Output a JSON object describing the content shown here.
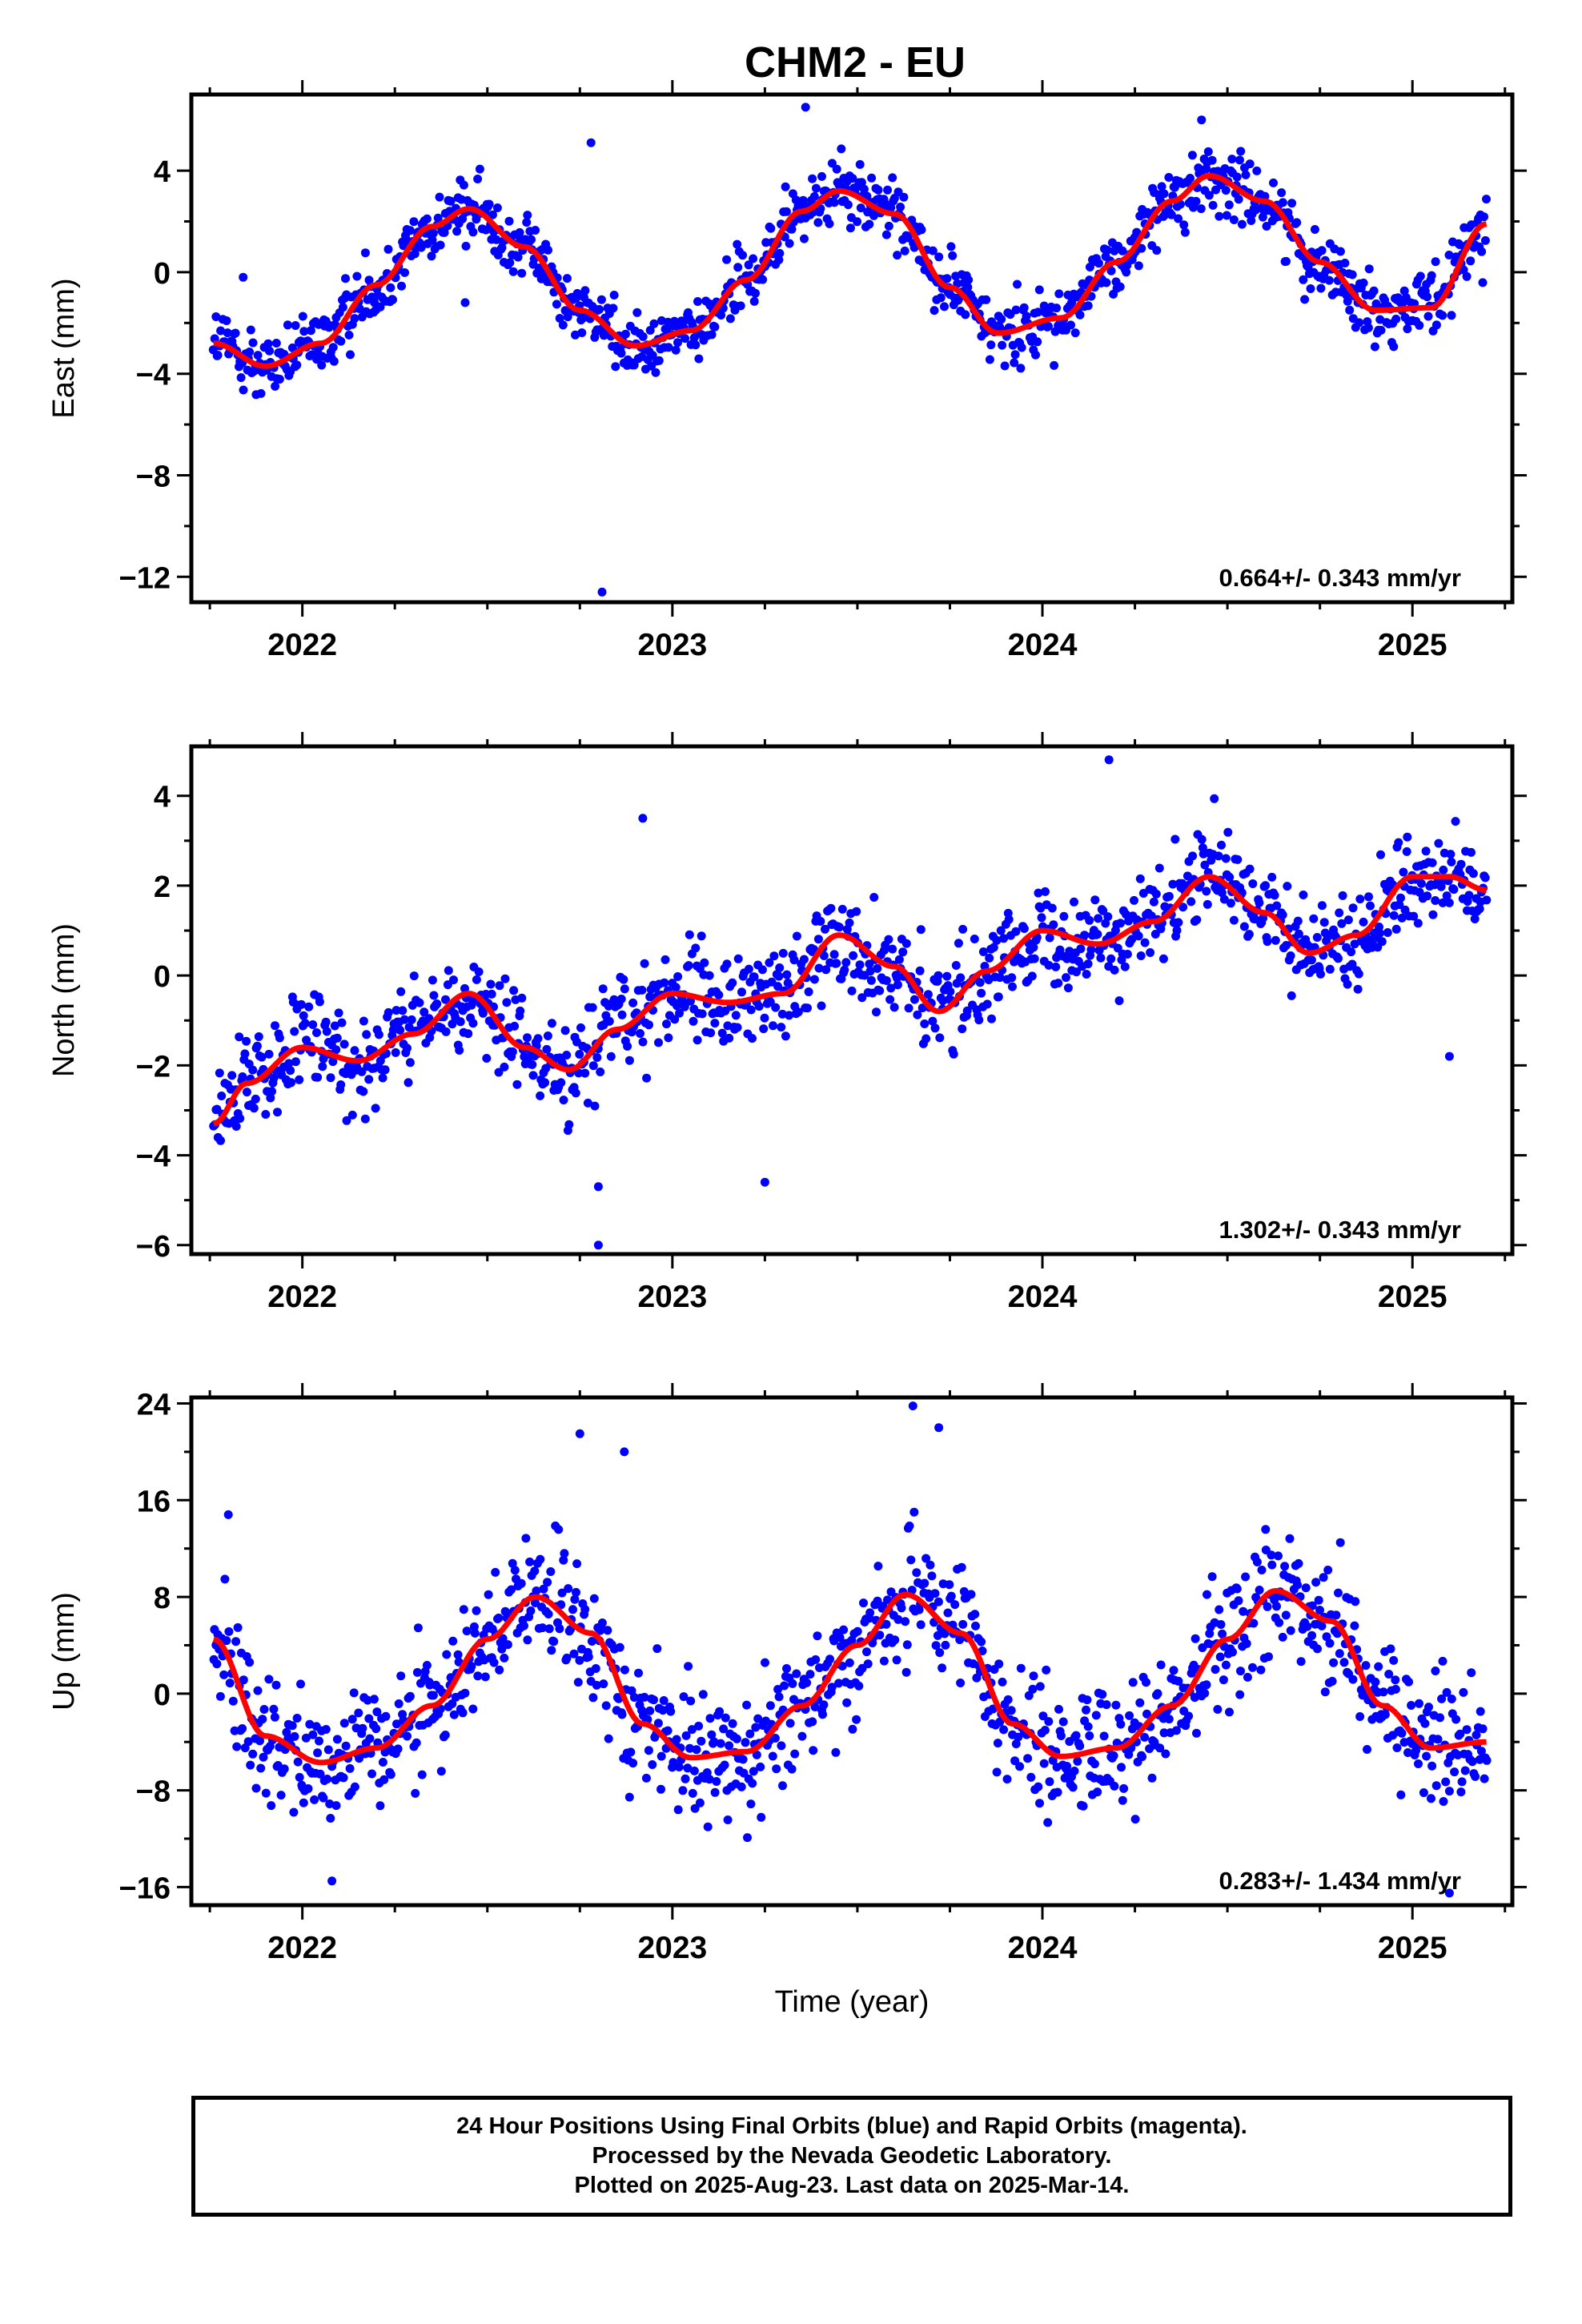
{
  "title": "CHM2 - EU",
  "xlabel": "Time (year)",
  "footer": {
    "line1": "24 Hour Positions Using Final Orbits (blue) and Rapid Orbits (magenta).",
    "line2": "Processed by the Nevada Geodetic Laboratory.",
    "line3": "Plotted on 2025-Aug-23. Last data on 2025-Mar-14."
  },
  "colors": {
    "points": "#0000ff",
    "fit": "#ff0000",
    "axes": "#000000"
  },
  "chart_data": [
    {
      "type": "scatter",
      "ylabel": "East (mm)",
      "ylim": [
        -13,
        7
      ],
      "xlim": [
        2021.7,
        2025.27
      ],
      "xticks": [
        "2022",
        "2023",
        "2024",
        "2025"
      ],
      "yticks": [
        4,
        0,
        -4,
        -8,
        -12
      ],
      "ytick_labels": [
        "4",
        "0",
        "−4",
        "−8",
        "−12"
      ],
      "annotation": "0.664+/- 0.343 mm/yr",
      "series": [
        {
          "style": "points",
          "x_range": [
            2021.76,
            2025.2
          ],
          "count": 1100,
          "scatter": 0.9
        },
        {
          "style": "fit-line",
          "x": [
            2021.76,
            2021.9,
            2022.05,
            2022.2,
            2022.35,
            2022.45,
            2022.6,
            2022.75,
            2022.9,
            2023.05,
            2023.2,
            2023.35,
            2023.45,
            2023.6,
            2023.75,
            2023.88,
            2024.05,
            2024.2,
            2024.35,
            2024.45,
            2024.6,
            2024.75,
            2024.9,
            2025.05,
            2025.2
          ],
          "y": [
            -2.8,
            -3.7,
            -2.8,
            -0.5,
            1.8,
            2.5,
            1.0,
            -1.5,
            -2.9,
            -2.3,
            -0.3,
            2.4,
            3.2,
            2.3,
            -0.6,
            -2.4,
            -1.8,
            0.4,
            2.8,
            3.8,
            2.8,
            0.4,
            -1.5,
            -1.4,
            1.9
          ]
        },
        {
          "style": "outliers",
          "x": [
            2022.81,
            2022.78,
            2023.36,
            2024.43,
            2022.44,
            2021.84
          ],
          "y": [
            -12.6,
            5.1,
            6.5,
            6.0,
            -1.2,
            -0.2
          ]
        }
      ]
    },
    {
      "type": "scatter",
      "ylabel": "North (mm)",
      "ylim": [
        -6.2,
        5.1
      ],
      "xlim": [
        2021.7,
        2025.27
      ],
      "xticks": [
        "2022",
        "2023",
        "2024",
        "2025"
      ],
      "yticks": [
        4,
        2,
        0,
        -2,
        -4,
        -6
      ],
      "ytick_labels": [
        "4",
        "2",
        "0",
        "−2",
        "−4",
        "−6"
      ],
      "annotation": "1.302+/- 0.343 mm/yr",
      "series": [
        {
          "style": "points",
          "x_range": [
            2021.76,
            2025.2
          ],
          "count": 1100,
          "scatter": 0.75
        },
        {
          "style": "fit-line",
          "x": [
            2021.76,
            2021.85,
            2022.0,
            2022.15,
            2022.3,
            2022.45,
            2022.6,
            2022.72,
            2022.85,
            2023.0,
            2023.15,
            2023.3,
            2023.45,
            2023.6,
            2023.72,
            2023.85,
            2024.0,
            2024.15,
            2024.3,
            2024.45,
            2024.6,
            2024.72,
            2024.85,
            2025.0,
            2025.1,
            2025.2
          ],
          "y": [
            -3.3,
            -2.4,
            -1.6,
            -1.9,
            -1.3,
            -0.4,
            -1.6,
            -2.1,
            -1.2,
            -0.4,
            -0.6,
            -0.4,
            0.9,
            0.2,
            -0.8,
            0.1,
            1.0,
            0.7,
            1.2,
            2.2,
            1.4,
            0.5,
            0.9,
            2.2,
            2.2,
            1.9
          ]
        },
        {
          "style": "outliers",
          "x": [
            2022.8,
            2022.8,
            2024.18,
            2022.92,
            2025.1,
            2023.25
          ],
          "y": [
            -6.0,
            -4.7,
            4.8,
            3.5,
            -1.8,
            -4.6
          ]
        }
      ]
    },
    {
      "type": "scatter",
      "ylabel": "Up (mm)",
      "ylim": [
        -17.5,
        24.5
      ],
      "xlim": [
        2021.7,
        2025.27
      ],
      "xticks": [
        "2022",
        "2023",
        "2024",
        "2025"
      ],
      "yticks": [
        24,
        16,
        8,
        0,
        -8,
        -16
      ],
      "ytick_labels": [
        "24",
        "16",
        "8",
        "0",
        "−8",
        "−16"
      ],
      "annotation": "0.283+/- 1.434 mm/yr",
      "series": [
        {
          "style": "points",
          "x_range": [
            2021.76,
            2025.2
          ],
          "count": 1100,
          "scatter": 3.6
        },
        {
          "style": "fit-line",
          "x": [
            2021.76,
            2021.9,
            2022.05,
            2022.2,
            2022.35,
            2022.5,
            2022.63,
            2022.78,
            2022.92,
            2023.05,
            2023.2,
            2023.35,
            2023.5,
            2023.63,
            2023.78,
            2023.92,
            2024.05,
            2024.2,
            2024.35,
            2024.5,
            2024.63,
            2024.78,
            2024.92,
            2025.05,
            2025.2
          ],
          "y": [
            4.5,
            -3.5,
            -5.7,
            -4.5,
            -1.0,
            4.5,
            8.0,
            5.0,
            -2.5,
            -5.3,
            -4.8,
            -1.0,
            4.0,
            8.2,
            5.0,
            -2.5,
            -5.2,
            -4.5,
            -1.0,
            4.5,
            8.5,
            6.0,
            -1.0,
            -4.5,
            -4.0
          ]
        },
        {
          "style": "outliers",
          "x": [
            2023.65,
            2022.75,
            2023.72,
            2022.87,
            2025.1,
            2022.08,
            2021.8
          ],
          "y": [
            23.8,
            21.5,
            22.0,
            20.0,
            -16.5,
            -15.5,
            14.8
          ]
        }
      ]
    }
  ]
}
